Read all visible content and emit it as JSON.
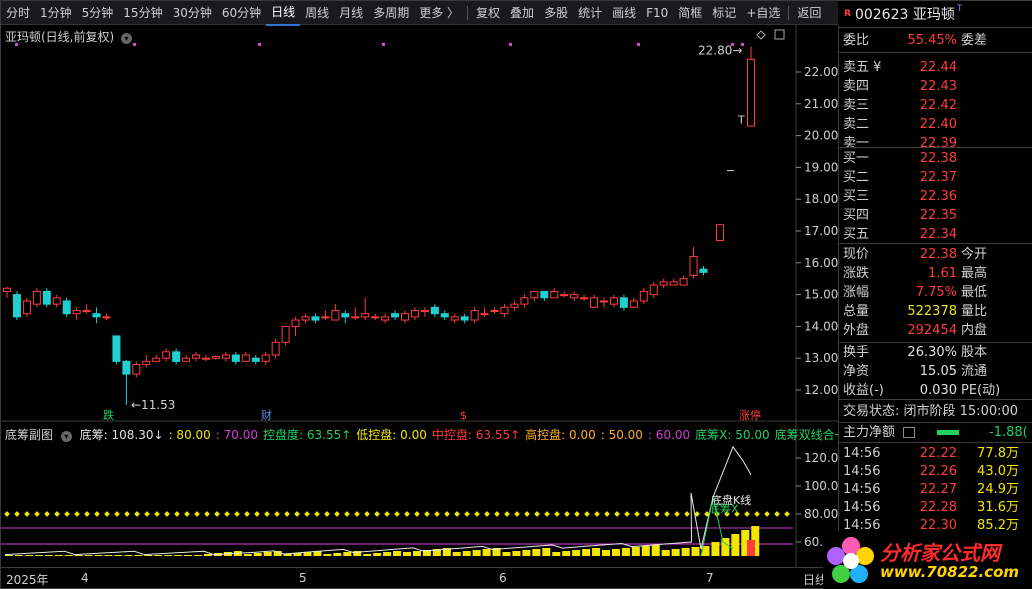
{
  "toolbar": {
    "items": [
      "分时",
      "1分钟",
      "5分钟",
      "15分钟",
      "30分钟",
      "60分钟",
      "日线",
      "周线",
      "月线",
      "多周期",
      "更多 〉",
      "复权",
      "叠加",
      "多股",
      "统计",
      "画线",
      "F10",
      "简框",
      "标记",
      "+自选",
      "返回"
    ],
    "active": "日线"
  },
  "stock": {
    "badge": "R",
    "code_name": "002623 亚玛顿",
    "t_mark": "T"
  },
  "main_chart": {
    "title": "亚玛顿(日线,前复权)",
    "price_ticks": [
      "22.00",
      "21.00",
      "20.00",
      "19.00",
      "18.00",
      "17.00",
      "16.00",
      "15.00",
      "14.00",
      "13.00",
      "12.00"
    ],
    "high_label": "22.80",
    "low_label": "11.53",
    "t_marker": "T",
    "events": [
      "跌",
      "财",
      "$",
      "涨停"
    ]
  },
  "sub_chart": {
    "title": "底筹副图",
    "items": [
      {
        "label": "底筹: 108.30↓",
        "color": "#e0e0e0"
      },
      {
        "label": ": 80.00",
        "color": "#f2e600"
      },
      {
        "label": ": 70.00",
        "color": "#d040d0"
      },
      {
        "label": "控盘度: 63.55↑",
        "color": "#20d060"
      },
      {
        "label": "低控盘: 0.00",
        "color": "#f2e600"
      },
      {
        "label": "中控盘: 63.55↑",
        "color": "#ff3c3c"
      },
      {
        "label": "高控盘: 0.00",
        "color": "#ffb020"
      },
      {
        "label": ": 50.00",
        "color": "#ffb020"
      },
      {
        "label": ": 60.00",
        "color": "#d040d0"
      },
      {
        "label": "底筹X: 50.00",
        "color": "#20d060"
      },
      {
        "label": "底筹双线合一",
        "color": "#20d060"
      }
    ],
    "ticks": [
      "120.0",
      "100.0",
      "80.00",
      "60.0"
    ],
    "annot1": "底盘K线",
    "annot2": "底筹X"
  },
  "xaxis": {
    "labels": [
      "2025年",
      "4",
      "5",
      "6",
      "7"
    ],
    "period": "日线"
  },
  "quote": {
    "weibi": {
      "label": "委比",
      "value": "55.45%",
      "label2": "委差"
    },
    "sell": [
      {
        "label": "卖五 ¥",
        "price": "22.44"
      },
      {
        "label": "卖四",
        "price": "22.43"
      },
      {
        "label": "卖三",
        "price": "22.42"
      },
      {
        "label": "卖二",
        "price": "22.40"
      },
      {
        "label": "卖一",
        "price": "22.39"
      }
    ],
    "buy": [
      {
        "label": "买一",
        "price": "22.38"
      },
      {
        "label": "买二",
        "price": "22.37"
      },
      {
        "label": "买三",
        "price": "22.36"
      },
      {
        "label": "买四",
        "price": "22.35"
      },
      {
        "label": "买五",
        "price": "22.34"
      }
    ],
    "stats": [
      {
        "label": "现价",
        "value": "22.38",
        "label2": "今开",
        "color": "red"
      },
      {
        "label": "涨跌",
        "value": "1.61",
        "label2": "最高",
        "color": "red"
      },
      {
        "label": "涨幅",
        "value": "7.75%",
        "label2": "最低",
        "color": "red"
      },
      {
        "label": "总量",
        "value": "522378",
        "label2": "量比",
        "color": "yellow"
      },
      {
        "label": "外盘",
        "value": "292454",
        "label2": "内盘",
        "color": "red"
      }
    ],
    "stats2": [
      {
        "label": "换手",
        "value": "26.30%",
        "label2": "股本"
      },
      {
        "label": "净资",
        "value": "15.05",
        "label2": "流通"
      },
      {
        "label": "收益(-)",
        "value": "0.030",
        "label2": "PE(动)"
      }
    ],
    "status": "交易状态: 闭市阶段 15:00:00",
    "main_flow": {
      "label": "主力净额",
      "value": "-1.88("
    },
    "ticks": [
      {
        "time": "14:56",
        "price": "22.22",
        "vol": "77.8万"
      },
      {
        "time": "14:56",
        "price": "22.26",
        "vol": "43.0万"
      },
      {
        "time": "14:56",
        "price": "22.27",
        "vol": "24.9万"
      },
      {
        "time": "14:56",
        "price": "22.28",
        "vol": "31.6万"
      },
      {
        "time": "14:56",
        "price": "22.30",
        "vol": "85.2万"
      }
    ]
  },
  "logo": {
    "line1": "分析家公式网",
    "line2": "www.70822.com"
  },
  "colors": {
    "up": "#ff3c3c",
    "down": "#20d0d0",
    "bg": "#000000"
  }
}
